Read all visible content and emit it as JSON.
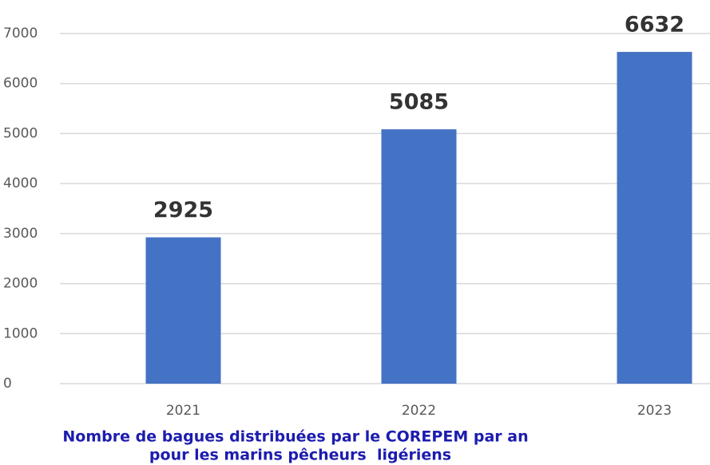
{
  "chart_data": {
    "type": "bar",
    "categories": [
      "2021",
      "2022",
      "2023"
    ],
    "values": [
      2925,
      5085,
      6632
    ],
    "color": "#4472c4",
    "ylim": [
      0,
      7000
    ],
    "yticks": [
      0,
      1000,
      2000,
      3000,
      4000,
      5000,
      6000,
      7000
    ],
    "grid": true,
    "caption": [
      "Nombre de bagues distribuées par le COREPEM par an",
      "pour les marins pêcheurs  ligériens"
    ]
  }
}
